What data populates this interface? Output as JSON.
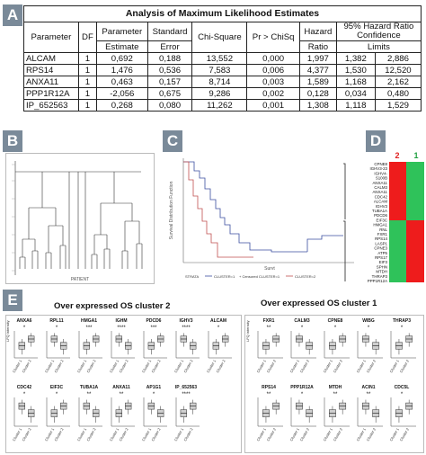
{
  "panels": {
    "a": "A",
    "b": "B",
    "c": "C",
    "d": "D",
    "e": "E"
  },
  "table": {
    "title": "Analysis of Maximum Likelihood Estimates",
    "headers": {
      "parameter": "Parameter",
      "df": "DF",
      "param_est_top": "Parameter",
      "param_est_bottom": "Estimate",
      "std_top": "Standard",
      "std_bottom": "Error",
      "chisq": "Chi-Square",
      "p": "Pr > ChiSq",
      "hr_top": "Hazard",
      "hr_bottom": "Ratio",
      "ci_top": "95% Hazard Ratio",
      "ci_mid": "Confidence",
      "ci_bottom": "Limits"
    },
    "rows": [
      {
        "param": "ALCAM",
        "df": "1",
        "est": "0,692",
        "se": "0,188",
        "chi": "13,552",
        "p": "0,000",
        "hr": "1,997",
        "lo": "1,382",
        "hi": "2,886"
      },
      {
        "param": "RPS14",
        "df": "1",
        "est": "1,476",
        "se": "0,536",
        "chi": "7,583",
        "p": "0,006",
        "hr": "4,377",
        "lo": "1,530",
        "hi": "12,520"
      },
      {
        "param": "ANXA11",
        "df": "1",
        "est": "0,463",
        "se": "0,157",
        "chi": "8,714",
        "p": "0,003",
        "hr": "1,589",
        "lo": "1,168",
        "hi": "2,162"
      },
      {
        "param": "PPP1R12A",
        "df": "1",
        "est": "-2,056",
        "se": "0,675",
        "chi": "9,286",
        "p": "0,002",
        "hr": "0,128",
        "lo": "0,034",
        "hi": "0,480"
      },
      {
        "param": "IP_652563",
        "df": "1",
        "est": "0,268",
        "se": "0,080",
        "chi": "11,262",
        "p": "0,001",
        "hr": "1,308",
        "lo": "1,118",
        "hi": "1,529"
      }
    ]
  },
  "km": {
    "legend": [
      "STRATA",
      "CLUSTER=1",
      "+ Censored CLUSTER=1",
      "CLUSTER=2"
    ],
    "xlabel": "Survt",
    "ylabel": "Survival Distribution Function"
  },
  "dendrogram": {
    "xlabel": "PATIENT"
  },
  "heatmap": {
    "col_labels": [
      "2",
      "1"
    ],
    "col_colors": [
      "#e02020",
      "#20a040"
    ],
    "genes": [
      "CPNE8",
      "IGHV3-23",
      "IGHV4-",
      "S100B",
      "ANXA11",
      "CALM3",
      "ANXA11",
      "CDC42",
      "ALCAM",
      "IGHV3",
      "TUBA1A",
      "PDCD6",
      "EIF3C",
      "HMGA1",
      "RNL",
      "FXR1",
      "RPS14",
      "LASP1",
      "CPNE3",
      "ATP5",
      "RPS17",
      "EIF3",
      "SPHN",
      "MTDH",
      "THRAP3",
      "PPP1R12A"
    ]
  },
  "boxplots": {
    "left_title": "Over expressed OS cluster 2",
    "right_title": "Over expressed OS cluster 1",
    "ylabel": "LFQ intensity",
    "xlabels": [
      "Cluster 1",
      "Cluster 2"
    ],
    "left_genes": [
      {
        "name": "ANXA6",
        "sig": "*"
      },
      {
        "name": "RPL11",
        "sig": "*"
      },
      {
        "name": "HMGA1",
        "sig": "***"
      },
      {
        "name": "IGHM",
        "sig": "****"
      },
      {
        "name": "PDCD6",
        "sig": "***"
      },
      {
        "name": "IGHV3",
        "sig": "****"
      },
      {
        "name": "ALCAM",
        "sig": "*"
      },
      {
        "name": "CDC42",
        "sig": "*"
      },
      {
        "name": "EIF3C",
        "sig": "*"
      },
      {
        "name": "TUBA1A",
        "sig": "**"
      },
      {
        "name": "ANXA11",
        "sig": "**"
      },
      {
        "name": "AP1G1",
        "sig": "*"
      },
      {
        "name": "IP_652563",
        "sig": "****"
      }
    ],
    "right_genes": [
      {
        "name": "FXR1",
        "sig": "**"
      },
      {
        "name": "CALM3",
        "sig": "*"
      },
      {
        "name": "CPNE8",
        "sig": "*"
      },
      {
        "name": "WIBG",
        "sig": "*"
      },
      {
        "name": "THRAP3",
        "sig": "*"
      },
      {
        "name": "RPS14",
        "sig": "**"
      },
      {
        "name": "PPP1R12A",
        "sig": "*"
      },
      {
        "name": "MTDH",
        "sig": "**"
      },
      {
        "name": "ACIN1",
        "sig": "**"
      },
      {
        "name": "CDC5L",
        "sig": "*"
      }
    ]
  }
}
